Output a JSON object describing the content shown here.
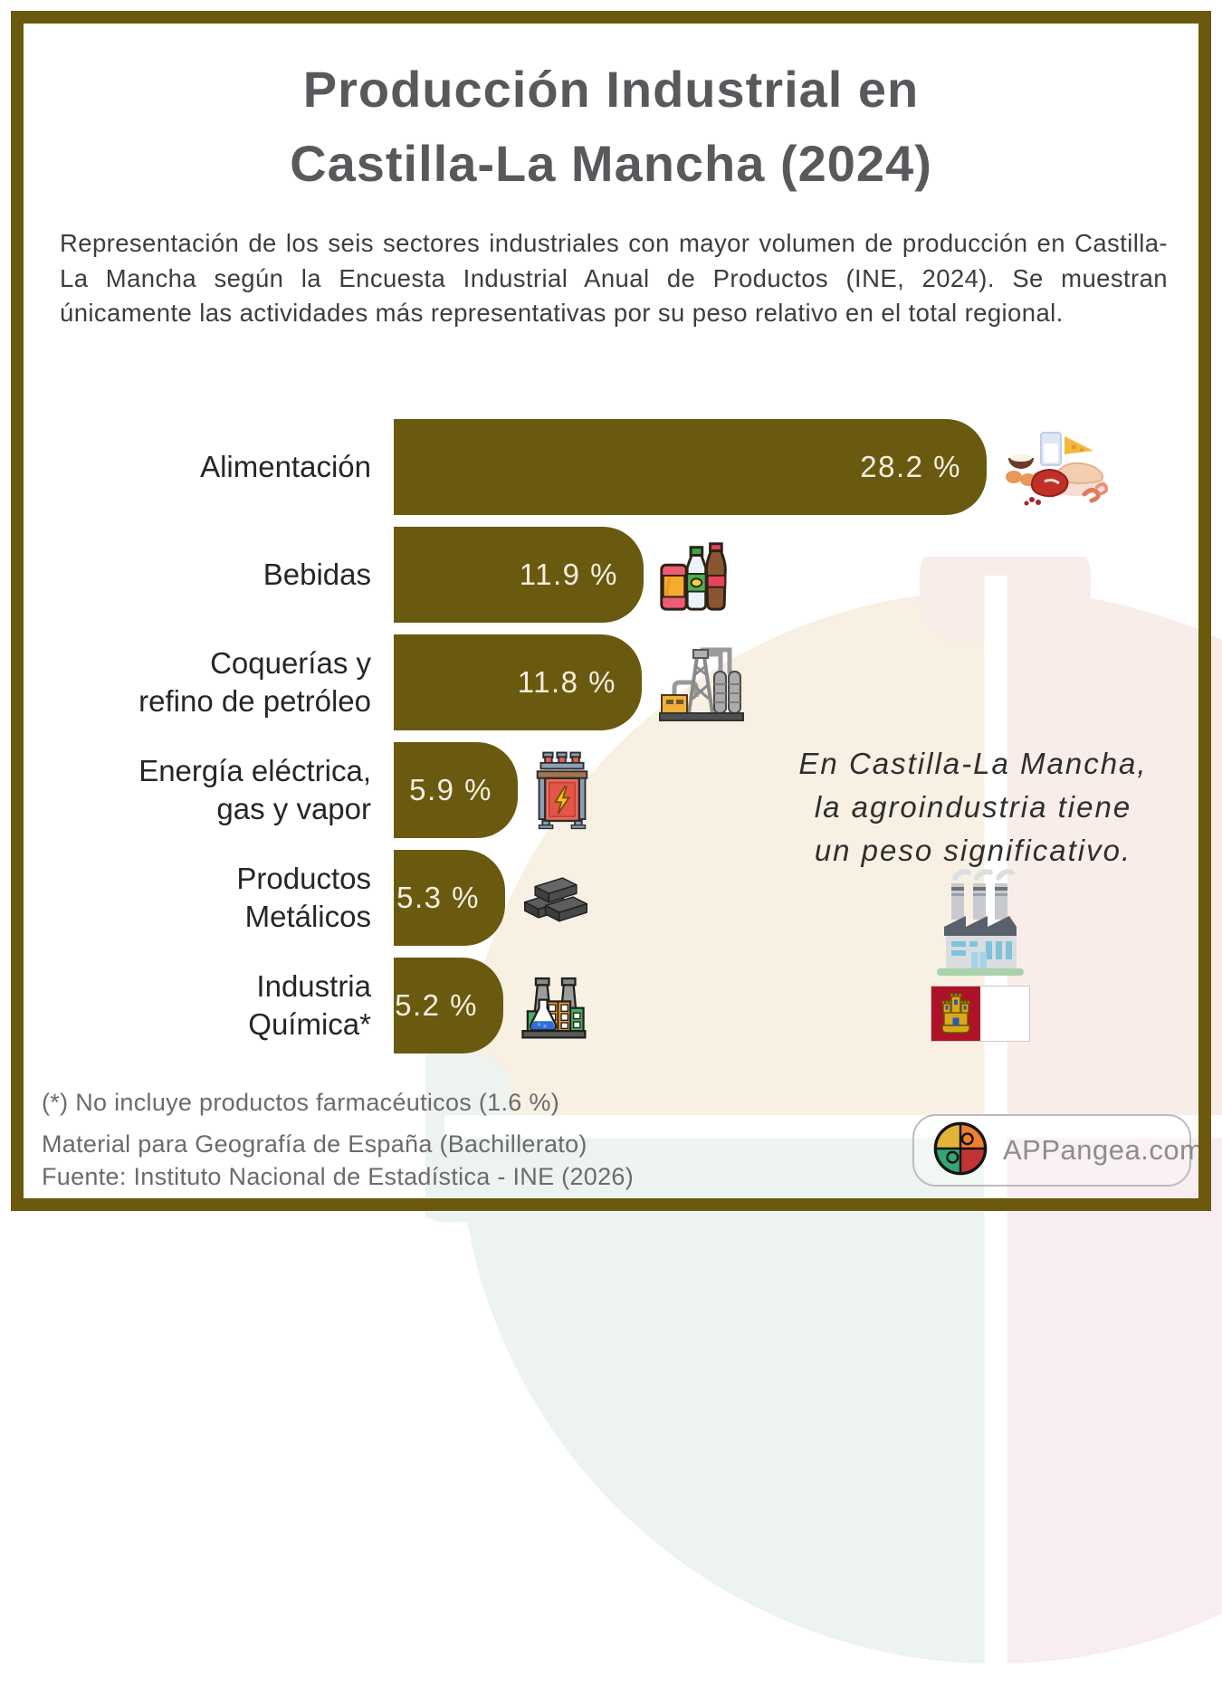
{
  "page": {
    "title_lines": [
      "Producción Industrial en",
      "Castilla-La Mancha (2024)"
    ],
    "subtitle": "Representación de los seis sectores industriales con mayor volumen de producción en Castilla-La Mancha según la Encuesta Industrial Anual de Productos (INE, 2024). Se muestran únicamente las actividades más representativas por su peso relativo en el total regional."
  },
  "chart_data": {
    "type": "bar",
    "orientation": "horizontal",
    "title": "Producción Industrial en Castilla-La Mancha (2024)",
    "unit": "%",
    "xlim": [
      0,
      30
    ],
    "categories": [
      "Alimentación",
      "Bebidas",
      "Coquerías y refino de petróleo",
      "Energía eléctrica, gas y vapor",
      "Productos Metálicos",
      "Industria Química*"
    ],
    "values": [
      28.2,
      11.9,
      11.8,
      5.9,
      5.3,
      5.2
    ],
    "bars": [
      {
        "label_lines": [
          "Alimentación"
        ],
        "value": 28.2,
        "value_label": "28.2 %",
        "icon": "food-icon"
      },
      {
        "label_lines": [
          "Bebidas"
        ],
        "value": 11.9,
        "value_label": "11.9 %",
        "icon": "beverages-icon"
      },
      {
        "label_lines": [
          "Coquerías y",
          "refino de petróleo"
        ],
        "value": 11.8,
        "value_label": "11.8 %",
        "icon": "refinery-icon"
      },
      {
        "label_lines": [
          "Energía eléctrica,",
          "gas y vapor"
        ],
        "value": 5.9,
        "value_label": "5.9 %",
        "icon": "transformer-icon"
      },
      {
        "label_lines": [
          "Productos",
          "Metálicos"
        ],
        "value": 5.3,
        "value_label": "5.3 %",
        "icon": "metal-ingots-icon"
      },
      {
        "label_lines": [
          "Industria",
          "Química*"
        ],
        "value": 5.2,
        "value_label": "5.2 %",
        "icon": "chemical-plant-icon"
      }
    ],
    "bar_color": "#6a5a10",
    "value_text_color": "#f3eee1",
    "grid": false,
    "legend": false
  },
  "annotation": {
    "lines": [
      "En Castilla-La Mancha,",
      "la agroindustria tiene",
      "un peso significativo."
    ]
  },
  "footnotes": {
    "asterisk": "(*) No incluye productos farmacéuticos (1.6 %)",
    "material": "Material para Geografía de España (Bachillerato)",
    "source": "Fuente: Instituto Nacional de Estadística - INE (2026)"
  },
  "brand": {
    "label": "APPangea.com"
  },
  "colors": {
    "frame": "#6b5a0e",
    "title": "#59585c",
    "subtitle_text": "#3d3d3d",
    "label_text": "#262626",
    "footnote_text": "#6b6b6b",
    "brand_text": "#8c8c8c",
    "flag_red": "#ae1226",
    "flag_castle_gold": "#d8a91c"
  }
}
